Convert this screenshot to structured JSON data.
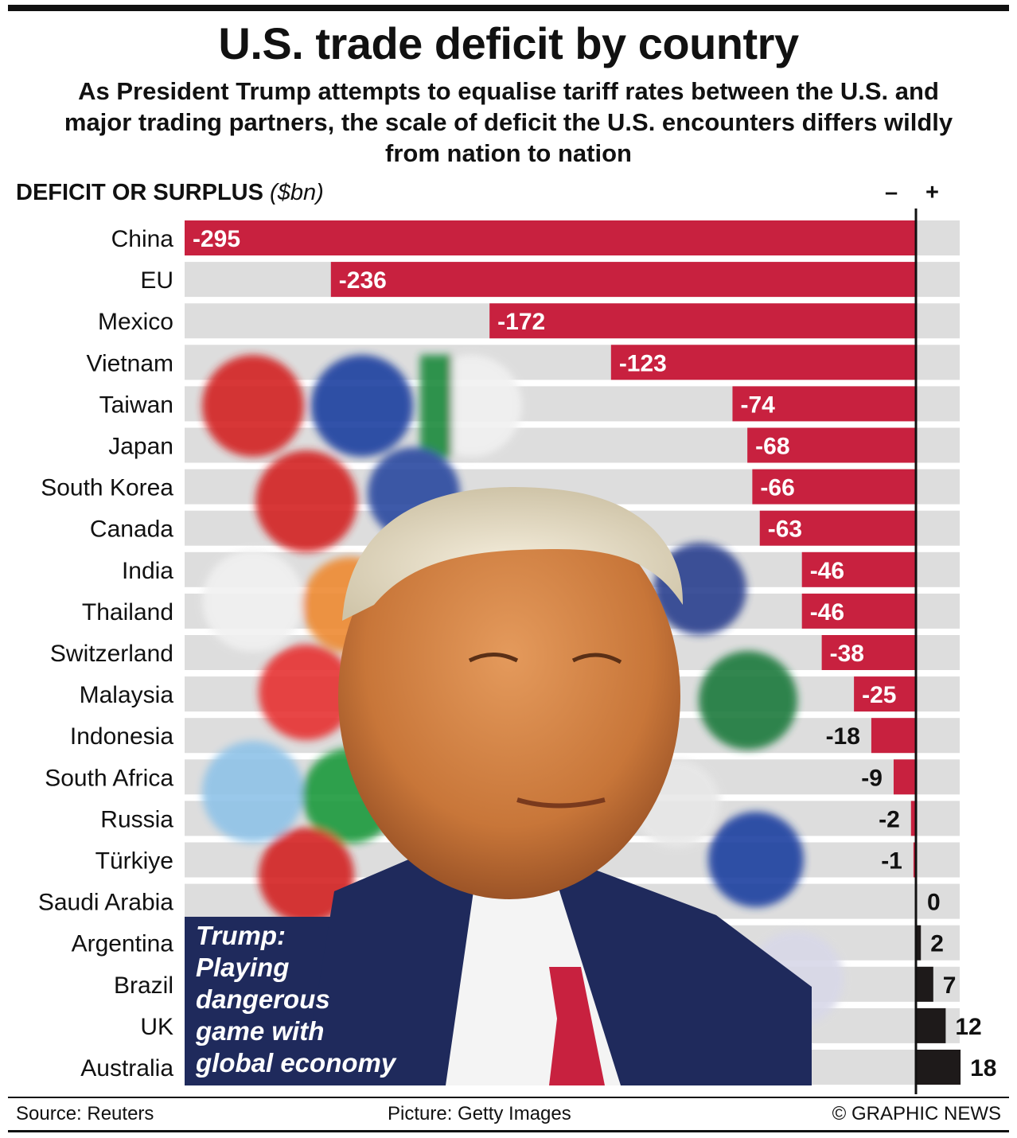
{
  "title": "U.S. trade deficit by country",
  "subtitle": "As President Trump attempts to equalise tariff rates between the U.S. and major trading partners, the scale of deficit the U.S. encounters differs wildly from nation to nation",
  "axis_label": "DEFICIT OR SURPLUS",
  "axis_unit": "($bn)",
  "minus_sign": "–",
  "plus_sign": "+",
  "caption_lines": [
    "Trump:",
    "Playing",
    "dangerous",
    "game with",
    "global economy"
  ],
  "photo_description": "Donald Trump portrait over blurred national flags",
  "footer": {
    "source": "Source: Reuters",
    "picture": "Picture: Getty Images",
    "copyright": "© GRAPHIC NEWS"
  },
  "colors": {
    "deficit": "#c8213f",
    "surplus": "#1e1a1a",
    "track": "#dddddd",
    "caption_bg": "#1f2a5c"
  },
  "chart_data": {
    "type": "bar",
    "orientation": "horizontal",
    "title": "U.S. trade deficit by country",
    "xlabel": "DEFICIT OR SURPLUS ($bn)",
    "ylabel": "",
    "xlim": [
      -295,
      18
    ],
    "categories": [
      "China",
      "EU",
      "Mexico",
      "Vietnam",
      "Taiwan",
      "Japan",
      "South Korea",
      "Canada",
      "India",
      "Thailand",
      "Switzerland",
      "Malaysia",
      "Indonesia",
      "South Africa",
      "Russia",
      "Türkiye",
      "Saudi Arabia",
      "Argentina",
      "Brazil",
      "UK",
      "Australia"
    ],
    "values": [
      -295,
      -236,
      -172,
      -123,
      -74,
      -68,
      -66,
      -63,
      -46,
      -46,
      -38,
      -25,
      -18,
      -9,
      -2,
      -1,
      0,
      2,
      7,
      12,
      18
    ]
  }
}
